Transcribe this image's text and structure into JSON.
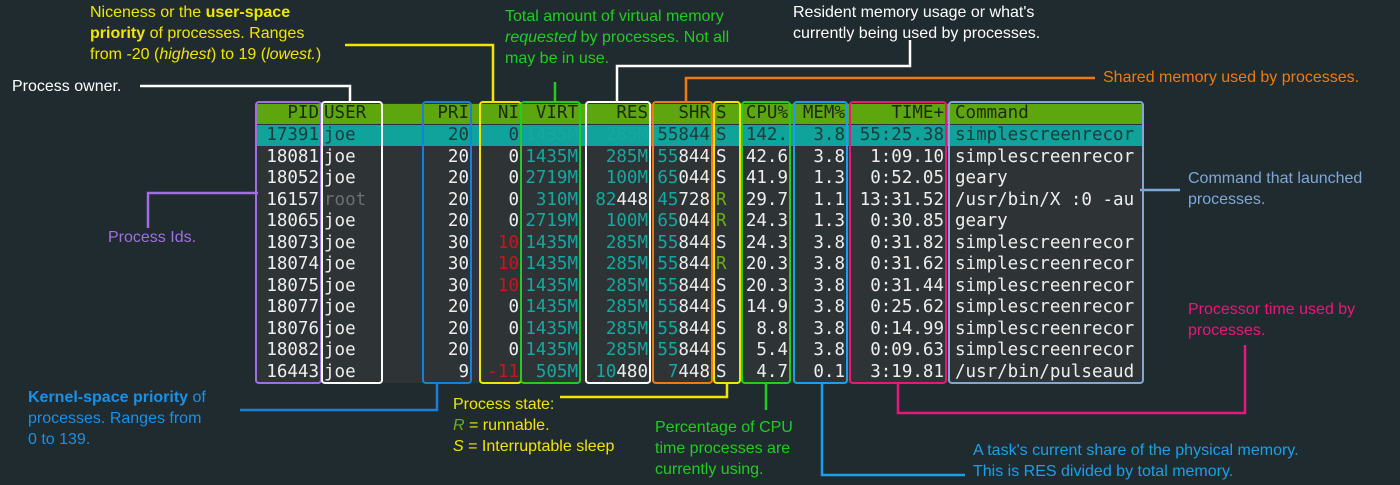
{
  "colors": {
    "background": "#1f2b2f",
    "terminal": "#2e3436",
    "header": "#5ea60d",
    "selected_row": "#10a39b",
    "pid": "#a070e0",
    "user": "#ffffff",
    "pri": "#1a7fd8",
    "ni": "#f2e600",
    "virt": "#22cc22",
    "res": "#ffffff",
    "shr": "#f07a12",
    "state": "#f2e600",
    "cpu": "#22cc22",
    "mem": "#1aa0e8",
    "time": "#e6197a",
    "command": "#7fa8d8"
  },
  "table": {
    "columns": [
      "PID",
      "USER",
      "PRI",
      "NI",
      "VIRT",
      "RES",
      "SHR",
      "S",
      "CPU%",
      "MEM%",
      "TIME+",
      "Command"
    ],
    "rows": [
      [
        "17391",
        "joe",
        "20",
        "0",
        "1435M",
        "285M",
        "55844",
        "S",
        "142.",
        "3.8",
        "55:25.38",
        "simplescreenrecor"
      ],
      [
        "18081",
        "joe",
        "20",
        "0",
        "1435M",
        "285M",
        "55844",
        "S",
        "42.6",
        "3.8",
        "1:09.10",
        "simplescreenrecor"
      ],
      [
        "18052",
        "joe",
        "20",
        "0",
        "2719M",
        "100M",
        "65044",
        "S",
        "41.9",
        "1.3",
        "0:52.05",
        "geary"
      ],
      [
        "16157",
        "root",
        "20",
        "0",
        "310M",
        "82448",
        "45728",
        "R",
        "29.7",
        "1.1",
        "13:31.52",
        "/usr/bin/X :0 -au"
      ],
      [
        "18065",
        "joe",
        "20",
        "0",
        "2719M",
        "100M",
        "65044",
        "R",
        "24.3",
        "1.3",
        "0:30.85",
        "geary"
      ],
      [
        "18073",
        "joe",
        "30",
        "10",
        "1435M",
        "285M",
        "55844",
        "S",
        "24.3",
        "3.8",
        "0:31.82",
        "simplescreenrecor"
      ],
      [
        "18074",
        "joe",
        "30",
        "10",
        "1435M",
        "285M",
        "55844",
        "R",
        "20.3",
        "3.8",
        "0:31.62",
        "simplescreenrecor"
      ],
      [
        "18075",
        "joe",
        "30",
        "10",
        "1435M",
        "285M",
        "55844",
        "S",
        "20.3",
        "3.8",
        "0:31.44",
        "simplescreenrecor"
      ],
      [
        "18077",
        "joe",
        "20",
        "0",
        "1435M",
        "285M",
        "55844",
        "S",
        "14.9",
        "3.8",
        "0:25.62",
        "simplescreenrecor"
      ],
      [
        "18076",
        "joe",
        "20",
        "0",
        "1435M",
        "285M",
        "55844",
        "S",
        "8.8",
        "3.8",
        "0:14.99",
        "simplescreenrecor"
      ],
      [
        "18082",
        "joe",
        "20",
        "0",
        "1435M",
        "285M",
        "55844",
        "S",
        "5.4",
        "3.8",
        "0:09.63",
        "simplescreenrecor"
      ],
      [
        "16443",
        "joe",
        "9",
        "-11",
        "505M",
        "10480",
        "7448",
        "S",
        "4.7",
        "0.1",
        "3:19.81",
        "/usr/bin/pulseaud"
      ]
    ]
  },
  "annotations": {
    "niceness": [
      "Niceness or the ",
      "user-space",
      "priority",
      " of processes. Ranges",
      "from -20 (",
      "highest",
      ") to 19 (",
      "lowest.",
      ")"
    ],
    "owner": "Process owner.",
    "virt": [
      "Total amount of virtual memory",
      "requested",
      " by processes. Not all",
      "may be in use."
    ],
    "res": "Resident memory usage or what's\ncurrently being used by processes.",
    "shr": "Shared memory used by processes.",
    "command": "Command that launched\nprocesses.",
    "pid": "Process Ids.",
    "time": "Processor time used by\nprocesses.",
    "kernel": [
      "Kernel-space priority",
      " of",
      "processes. Ranges from\n0 to 139."
    ],
    "state": [
      "Process state:",
      "R",
      " = runnable.",
      "S",
      " = Interruptable sleep"
    ],
    "cpu": "Percentage of CPU\ntime processes are\ncurrently using.",
    "mem": "A task's current share of the physical memory.\nThis is RES divided by total memory."
  }
}
